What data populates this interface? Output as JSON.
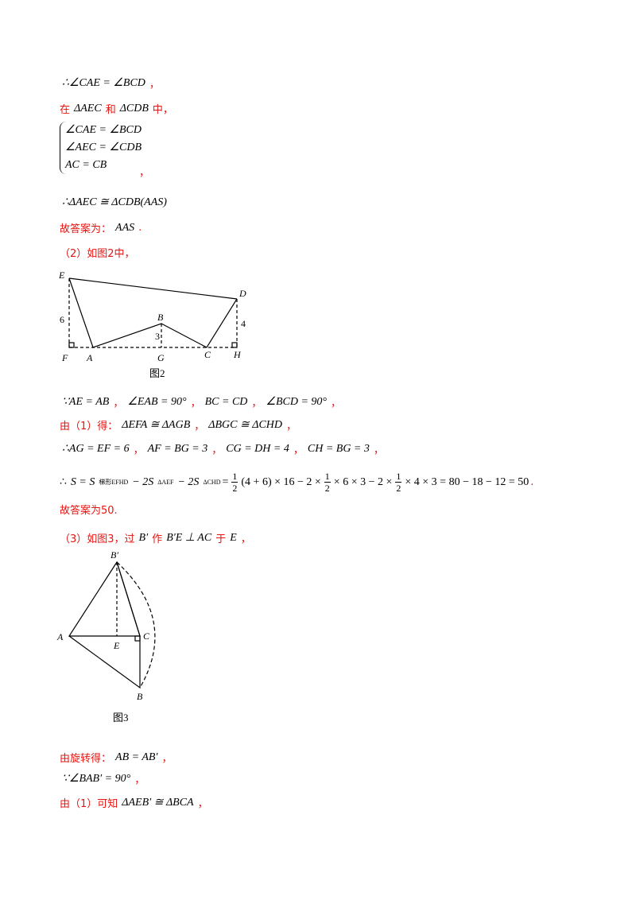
{
  "lines": [
    [
      "∴∠CAE = ∠BCD",
      "，"
    ],
    [
      "在",
      "ΔAEC",
      "和",
      "ΔCDB",
      "中，"
    ],
    [
      "∠CAE = ∠BCD",
      "∠AEC = ∠CDB",
      "AC = CB",
      "，"
    ],
    [
      "∴ΔAEC ≅ ΔCDB(AAS)"
    ],
    [
      "故答案为：",
      "AAS",
      "."
    ],
    [
      "（2）如图2中，"
    ],
    [
      "∵AE = AB",
      "，",
      "∠EAB = 90°",
      "，",
      "BC = CD",
      "，",
      "∠BCD = 90°",
      "，"
    ],
    [
      "由（1）得：",
      "ΔEFA ≅ ΔAGB",
      "，",
      "ΔBGC ≅ ΔCHD",
      "，"
    ],
    [
      "∴AG = EF = 6",
      "，",
      "AF = BG = 3",
      "，",
      "CG = DH = 4",
      "，",
      "CH = BG = 3",
      "，"
    ],
    [
      "∴",
      "S = S",
      "梯形EFHD",
      "− 2S",
      "ΔAEF",
      "− 2S",
      "ΔCHD",
      "=",
      "1",
      "2",
      "(4 + 6) × 16 − 2 ×",
      "1",
      "2",
      "× 6 × 3 − 2 ×",
      "1",
      "2",
      "× 4 × 3 = 80 − 18 − 12 = 50",
      "."
    ],
    [
      "故答案为50."
    ],
    [
      "（3）如图3，过",
      "B′",
      "作",
      "B′E ⊥ AC",
      "于",
      "E",
      "，"
    ],
    [
      "由旋转得：",
      "AB = AB′",
      "，"
    ],
    [
      "∵∠BAB′ = 90°",
      "，"
    ],
    [
      "由（1）可知",
      "ΔAEB′ ≅ ΔBCA",
      "，"
    ]
  ],
  "figure2": {
    "labels": [
      "E",
      "D",
      "6",
      "4",
      "B",
      "3",
      "F",
      "A",
      "G",
      "C",
      "H"
    ],
    "caption": "图2"
  },
  "figure3": {
    "labels": [
      "B′",
      "A",
      "C",
      "E",
      "B"
    ],
    "caption": "图3"
  }
}
